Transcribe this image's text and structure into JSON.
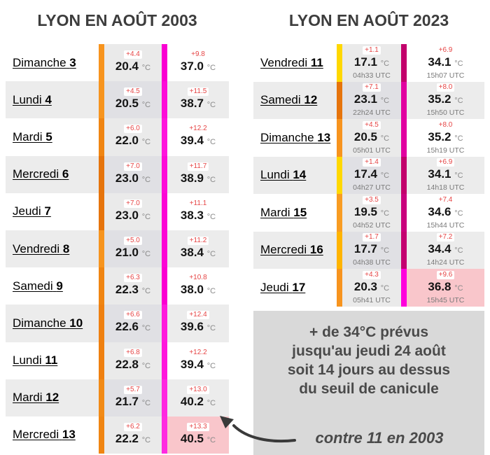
{
  "unit": "°C",
  "colors": {
    "anomaly_red": "#E64545",
    "highlight_pink": "#F9C6CB",
    "row_shade": "#ECECEC",
    "min_cell_shade": "#EAEAEA",
    "min_cell_shade_dark": "#E0E0E4",
    "callout_bg": "#D9D9D9",
    "title_gray": "#3D3D3D",
    "arrow": "#3A3A3A"
  },
  "left_table": {
    "title": "LYON EN AOÛT 2003",
    "rows": [
      {
        "day": "Dimanche",
        "num": "3",
        "shaded": false,
        "min_anom": "+4.4",
        "min": "20.4",
        "min_bar": "#F7941E",
        "max_anom": "+9.8",
        "max": "37.0",
        "max_bar": "#FA00D2",
        "max_highlight": false
      },
      {
        "day": "Lundi",
        "num": "4",
        "shaded": true,
        "min_anom": "+4.5",
        "min": "20.5",
        "min_bar": "#F7941E",
        "max_anom": "+11.5",
        "max": "38.7",
        "max_bar": "#FD0CD8",
        "max_highlight": false
      },
      {
        "day": "Mardi",
        "num": "5",
        "shaded": false,
        "min_anom": "+6.0",
        "min": "22.0",
        "min_bar": "#F08512",
        "max_anom": "+12.2",
        "max": "39.4",
        "max_bar": "#FF16DC",
        "max_highlight": false
      },
      {
        "day": "Mercredi",
        "num": "6",
        "shaded": true,
        "min_anom": "+7.0",
        "min": "23.0",
        "min_bar": "#E6740C",
        "max_anom": "+11.7",
        "max": "38.9",
        "max_bar": "#FD0CD8",
        "max_highlight": false
      },
      {
        "day": "Jeudi",
        "num": "7",
        "shaded": false,
        "min_anom": "+7.0",
        "min": "23.0",
        "min_bar": "#E6740C",
        "max_anom": "+11.1",
        "max": "38.3",
        "max_bar": "#FC06D5",
        "max_highlight": false
      },
      {
        "day": "Vendredi",
        "num": "8",
        "shaded": true,
        "min_anom": "+5.0",
        "min": "21.0",
        "min_bar": "#F7941E",
        "max_anom": "+11.2",
        "max": "38.4",
        "max_bar": "#FC06D5",
        "max_highlight": false
      },
      {
        "day": "Samedi",
        "num": "9",
        "shaded": false,
        "min_anom": "+6.3",
        "min": "22.3",
        "min_bar": "#F08512",
        "max_anom": "+10.8",
        "max": "38.0",
        "max_bar": "#FB00D2",
        "max_highlight": false
      },
      {
        "day": "Dimanche",
        "num": "10",
        "shaded": true,
        "min_anom": "+6.6",
        "min": "22.6",
        "min_bar": "#EF8010",
        "max_anom": "+12.4",
        "max": "39.6",
        "max_bar": "#FF1ADC",
        "max_highlight": false
      },
      {
        "day": "Lundi",
        "num": "11",
        "shaded": false,
        "min_anom": "+6.8",
        "min": "22.8",
        "min_bar": "#EF8010",
        "max_anom": "+12.2",
        "max": "39.4",
        "max_bar": "#FF16DC",
        "max_highlight": false
      },
      {
        "day": "Mardi",
        "num": "12",
        "shaded": true,
        "min_anom": "+5.7",
        "min": "21.7",
        "min_bar": "#F28A16",
        "max_anom": "+13.0",
        "max": "40.2",
        "max_bar": "#FF28E0",
        "max_highlight": false
      },
      {
        "day": "Mercredi",
        "num": "13",
        "shaded": false,
        "min_anom": "+6.2",
        "min": "22.2",
        "min_bar": "#F08512",
        "max_anom": "+13.3",
        "max": "40.5",
        "max_bar": "#FF2BE0",
        "max_highlight": true
      }
    ]
  },
  "right_table": {
    "title": "LYON EN AOÛT 2023",
    "rows": [
      {
        "day": "Vendredi",
        "num": "11",
        "shaded": false,
        "min_anom": "+1.1",
        "min": "17.1",
        "min_time": "04h33 UTC",
        "min_bar": "#FFD800",
        "max_anom": "+6.9",
        "max": "34.1",
        "max_time": "15h07 UTC",
        "max_bar": "#C2006B",
        "max_highlight": false
      },
      {
        "day": "Samedi",
        "num": "12",
        "shaded": true,
        "min_anom": "+7.1",
        "min": "23.1",
        "min_time": "22h24 UTC",
        "min_bar": "#E6740C",
        "max_anom": "+8.0",
        "max": "35.2",
        "max_time": "15h50 UTC",
        "max_bar": "#E100A0",
        "max_highlight": false
      },
      {
        "day": "Dimanche",
        "num": "13",
        "shaded": false,
        "min_anom": "+4.5",
        "min": "20.5",
        "min_time": "05h01 UTC",
        "min_bar": "#F7941E",
        "max_anom": "+8.0",
        "max": "35.2",
        "max_time": "15h19 UTC",
        "max_bar": "#E100A0",
        "max_highlight": false
      },
      {
        "day": "Lundi",
        "num": "14",
        "shaded": true,
        "min_anom": "+1.4",
        "min": "17.4",
        "min_time": "04h27 UTC",
        "min_bar": "#FFD800",
        "max_anom": "+6.9",
        "max": "34.1",
        "max_time": "14h18 UTC",
        "max_bar": "#C2006B",
        "max_highlight": false
      },
      {
        "day": "Mardi",
        "num": "15",
        "shaded": false,
        "min_anom": "+3.5",
        "min": "19.5",
        "min_time": "04h52 UTC",
        "min_bar": "#F89C22",
        "max_anom": "+7.4",
        "max": "34.6",
        "max_time": "15h44 UTC",
        "max_bar": "#C9007C",
        "max_highlight": false
      },
      {
        "day": "Mercredi",
        "num": "16",
        "shaded": true,
        "min_anom": "+1.7",
        "min": "17.7",
        "min_time": "04h38 UTC",
        "min_bar": "#FFB400",
        "max_anom": "+7.2",
        "max": "34.4",
        "max_time": "14h24 UTC",
        "max_bar": "#C40070",
        "max_highlight": false
      },
      {
        "day": "Jeudi",
        "num": "17",
        "shaded": false,
        "min_anom": "+4.3",
        "min": "20.3",
        "min_time": "05h41 UTC",
        "min_bar": "#F7941E",
        "max_anom": "+9.6",
        "max": "36.8",
        "max_time": "15h45 UTC",
        "max_bar": "#FF00DC",
        "max_highlight": true
      }
    ]
  },
  "callout": {
    "lines": [
      "+ de 34°C prévus",
      "jusqu'au jeudi 24 août",
      "soit 14 jours au dessus",
      "du seuil de canicule"
    ],
    "note": "contre 11 en 2003"
  },
  "chart_data": [
    {
      "type": "table",
      "title": "LYON EN AOÛT 2003",
      "columns": [
        "jour",
        "anomalie_tmin",
        "tmin_c",
        "anomalie_tmax",
        "tmax_c"
      ],
      "rows": [
        [
          "Dimanche 3",
          4.4,
          20.4,
          9.8,
          37.0
        ],
        [
          "Lundi 4",
          4.5,
          20.5,
          11.5,
          38.7
        ],
        [
          "Mardi 5",
          6.0,
          22.0,
          12.2,
          39.4
        ],
        [
          "Mercredi 6",
          7.0,
          23.0,
          11.7,
          38.9
        ],
        [
          "Jeudi 7",
          7.0,
          23.0,
          11.1,
          38.3
        ],
        [
          "Vendredi 8",
          5.0,
          21.0,
          11.2,
          38.4
        ],
        [
          "Samedi 9",
          6.3,
          22.3,
          10.8,
          38.0
        ],
        [
          "Dimanche 10",
          6.6,
          22.6,
          12.4,
          39.6
        ],
        [
          "Lundi 11",
          6.8,
          22.8,
          12.2,
          39.4
        ],
        [
          "Mardi 12",
          5.7,
          21.7,
          13.0,
          40.2
        ],
        [
          "Mercredi 13",
          6.2,
          22.2,
          13.3,
          40.5
        ]
      ]
    },
    {
      "type": "table",
      "title": "LYON EN AOÛT 2023",
      "columns": [
        "jour",
        "anomalie_tmin",
        "tmin_c",
        "heure_tmin_utc",
        "anomalie_tmax",
        "tmax_c",
        "heure_tmax_utc"
      ],
      "rows": [
        [
          "Vendredi 11",
          1.1,
          17.1,
          "04h33",
          6.9,
          34.1,
          "15h07"
        ],
        [
          "Samedi 12",
          7.1,
          23.1,
          "22h24",
          8.0,
          35.2,
          "15h50"
        ],
        [
          "Dimanche 13",
          4.5,
          20.5,
          "05h01",
          8.0,
          35.2,
          "15h19"
        ],
        [
          "Lundi 14",
          1.4,
          17.4,
          "04h27",
          6.9,
          34.1,
          "14h18"
        ],
        [
          "Mardi 15",
          3.5,
          19.5,
          "04h52",
          7.4,
          34.6,
          "15h44"
        ],
        [
          "Mercredi 16",
          1.7,
          17.7,
          "04h38",
          7.2,
          34.4,
          "14h24"
        ],
        [
          "Jeudi 17",
          4.3,
          20.3,
          "05h41",
          9.6,
          36.8,
          "15h45"
        ]
      ]
    }
  ]
}
